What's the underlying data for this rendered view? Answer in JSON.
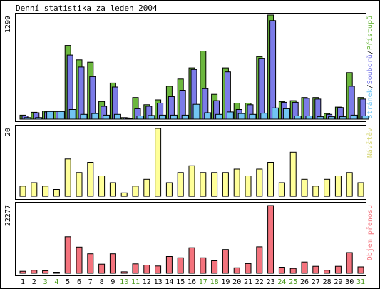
{
  "colors": {
    "frame": "#000000",
    "background": "#ffffff",
    "bar_outline": "#000000",
    "weekday_label": "#000000",
    "weekend_label": "#4a9a1c",
    "hits": "#6cb73e",
    "files": "#7b7be8",
    "pages": "#72c5f4",
    "visits": "#ffff99",
    "visits_legend": "#d7d77a",
    "kbytes": "#f4737d"
  },
  "chart_data": {
    "type": "bar",
    "title": "Denní statistika za leden 2004",
    "categories": [
      "1",
      "2",
      "3",
      "4",
      "5",
      "6",
      "7",
      "8",
      "9",
      "10",
      "11",
      "12",
      "13",
      "14",
      "15",
      "16",
      "17",
      "18",
      "19",
      "20",
      "21",
      "22",
      "23",
      "24",
      "25",
      "26",
      "27",
      "28",
      "29",
      "30",
      "31"
    ],
    "weekend_days": [
      "3",
      "4",
      "10",
      "11",
      "17",
      "18",
      "24",
      "25",
      "31"
    ],
    "panels": [
      {
        "id": "hits-files-pages",
        "ymax_label": "1299",
        "ylim": [
          0,
          1299
        ],
        "legend": {
          "parts": [
            {
              "text": "Stránek",
              "color": "#72c5f4"
            },
            {
              "text": "/",
              "color": "#000000"
            },
            {
              "text": "Souborů",
              "color": "#7b7be8"
            },
            {
              "text": "/",
              "color": "#000000"
            },
            {
              "text": "Přístupů",
              "color": "#6cb73e"
            }
          ]
        },
        "series": [
          {
            "name": "Přístupů",
            "color": "#6cb73e",
            "values": [
              50,
              85,
              100,
              95,
              920,
              740,
              710,
              220,
              450,
              20,
              270,
              180,
              240,
              410,
              500,
              640,
              850,
              310,
              640,
              200,
              200,
              780,
              1299,
              220,
              230,
              270,
              270,
              70,
              150,
              580,
              270
            ]
          },
          {
            "name": "Souborů",
            "color": "#7b7be8",
            "values": [
              40,
              80,
              90,
              95,
              800,
              650,
              530,
              160,
              400,
              15,
              130,
              160,
              200,
              280,
              360,
              620,
              380,
              230,
              590,
              120,
              180,
              760,
              1230,
              210,
              210,
              260,
              250,
              60,
              145,
              410,
              250
            ]
          },
          {
            "name": "Stránek",
            "color": "#72c5f4",
            "values": [
              20,
              20,
              95,
              95,
              120,
              60,
              70,
              50,
              60,
              5,
              40,
              45,
              50,
              50,
              50,
              185,
              80,
              60,
              90,
              70,
              60,
              75,
              140,
              130,
              40,
              40,
              30,
              30,
              30,
              50,
              40
            ]
          }
        ]
      },
      {
        "id": "visits",
        "ymax_label": "20",
        "ylim": [
          0,
          20
        ],
        "legend": {
          "parts": [
            {
              "text": "Návštěv",
              "color": "#d7d77a"
            }
          ]
        },
        "series": [
          {
            "name": "Návštěv",
            "color": "#ffff99",
            "values": [
              3,
              4,
              3,
              2,
              11,
              7,
              10,
              6,
              4,
              1,
              3,
              5,
              20,
              4,
              7,
              9,
              7,
              7,
              7,
              8,
              6,
              8,
              10,
              4,
              13,
              5,
              3,
              5,
              6,
              7,
              4
            ]
          }
        ]
      },
      {
        "id": "kbytes",
        "ymax_label": "22277",
        "ylim": [
          0,
          22277
        ],
        "legend": {
          "parts": [
            {
              "text": "Objem přenosu",
              "color": "#f4737d"
            }
          ]
        },
        "series": [
          {
            "name": "Objem přenosu",
            "color": "#f4737d",
            "values": [
              650,
              1000,
              850,
              350,
              12000,
              8600,
              6400,
              3000,
              6400,
              500,
              3100,
              2700,
              2400,
              5500,
              5100,
              8400,
              5100,
              4100,
              7800,
              1800,
              3200,
              8700,
              22277,
              2000,
              1600,
              3700,
              2300,
              1000,
              2300,
              6800,
              2100
            ]
          }
        ]
      }
    ]
  }
}
